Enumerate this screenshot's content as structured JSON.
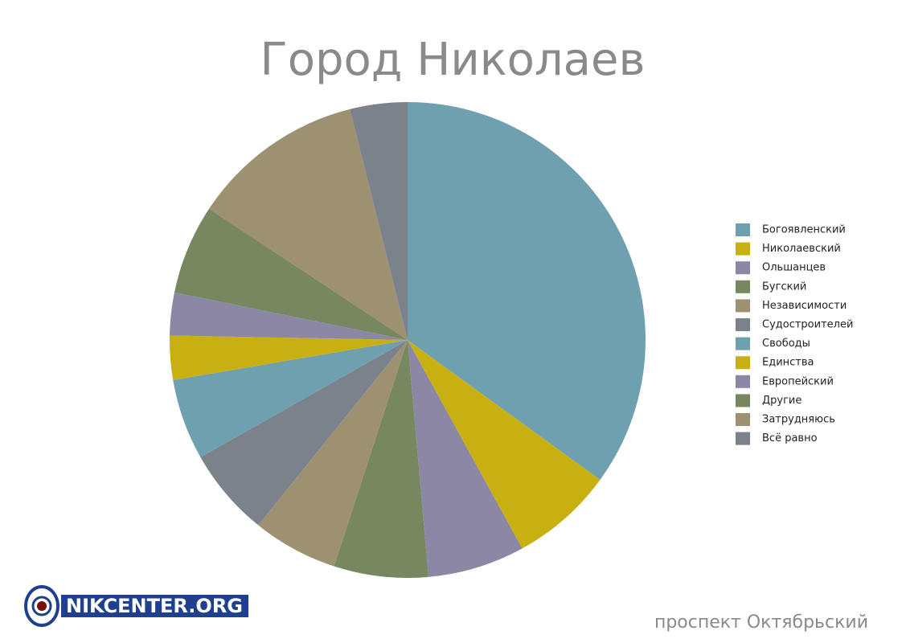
{
  "chart_data": {
    "type": "pie",
    "title": "Город Николаев",
    "categories": [
      "Богоявленский",
      "Николаевский",
      "Ольшанцев",
      "Бугский",
      "Независимости",
      "Судостроителей",
      "Свободы",
      "Единства",
      "Европейский",
      "Другие",
      "Затрудняюсь",
      "Всё равно"
    ],
    "values": [
      35,
      7,
      6.6,
      6.4,
      5.8,
      6,
      5.5,
      3,
      2.9,
      6.1,
      11.8,
      3.9
    ],
    "colors": [
      "#6fa0af",
      "#c9b012",
      "#8b87a5",
      "#77875f",
      "#9d9171",
      "#7b828b",
      "#6fa0af",
      "#c9b012",
      "#8b87a5",
      "#77875f",
      "#9d9171",
      "#7b828b"
    ],
    "legend": "right"
  },
  "footer": {
    "logo": "NIKCENTER.ORG",
    "caption": "проспект Октябрьский"
  }
}
